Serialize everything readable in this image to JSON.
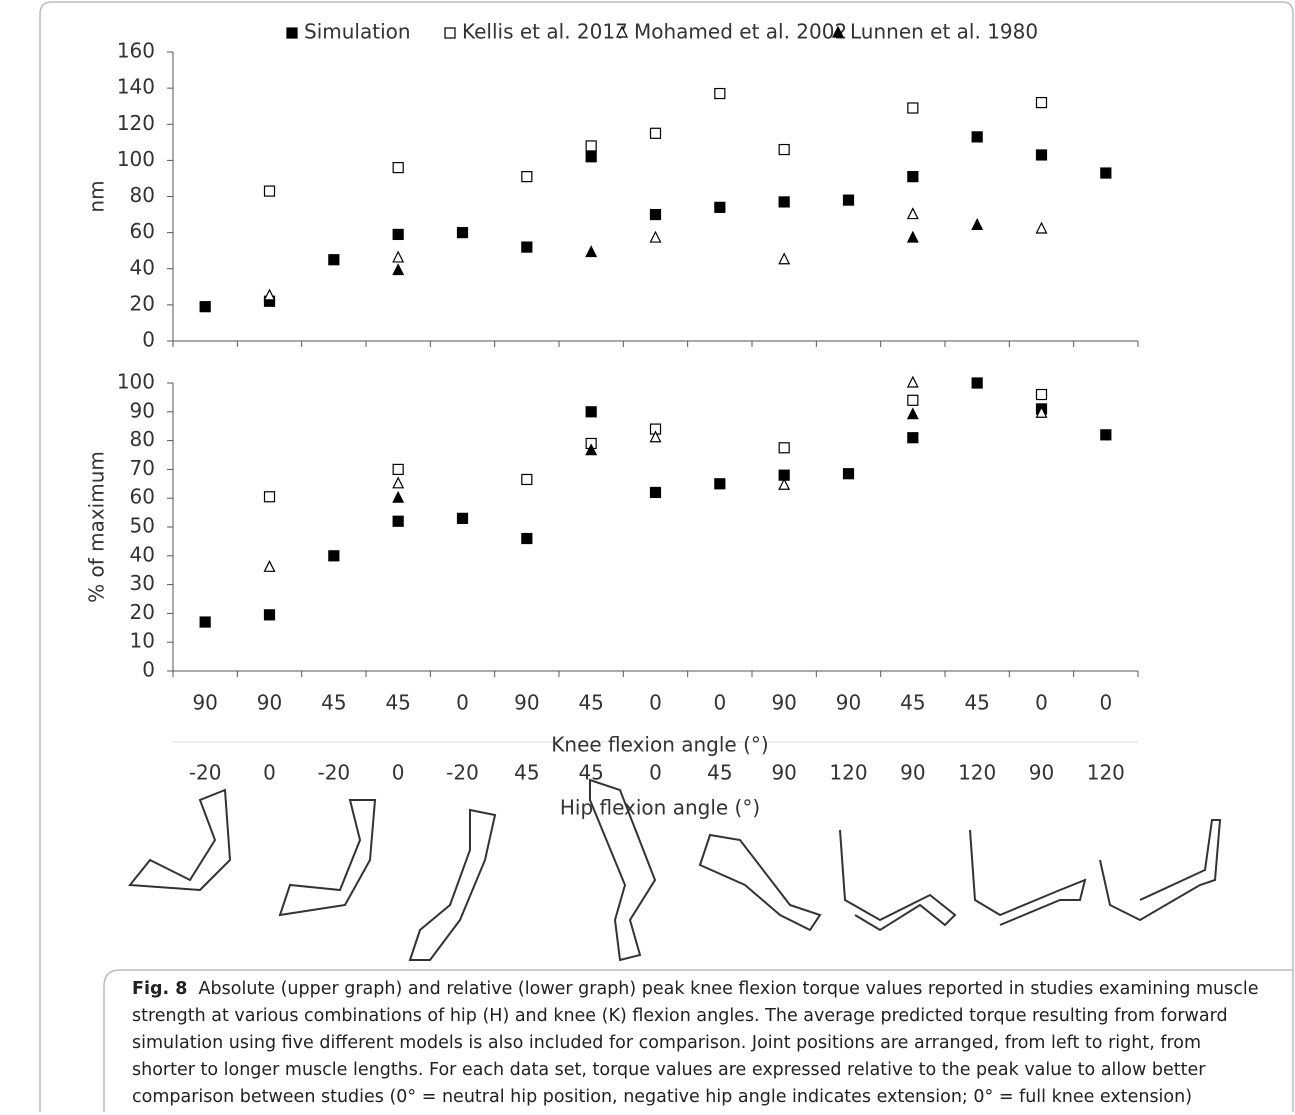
{
  "chart_data": [
    {
      "type": "scatter",
      "ylabel": "nm",
      "ylim": [
        0,
        160
      ],
      "yticks": [
        0,
        20,
        40,
        60,
        80,
        100,
        120,
        140,
        160
      ],
      "series": [
        {
          "name": "Simulation",
          "marker": "filled-square",
          "color": "#000000",
          "values": [
            19,
            22,
            45,
            59,
            60,
            52,
            102,
            70,
            74,
            77,
            78,
            91,
            113,
            103,
            93
          ]
        },
        {
          "name": "Kellis et al. 2017",
          "marker": "open-square",
          "color": "#000000",
          "values": [
            null,
            83,
            null,
            96,
            null,
            91,
            108,
            115,
            137,
            106,
            null,
            129,
            null,
            132,
            null
          ]
        },
        {
          "name": "Mohamed et al. 2002",
          "marker": "open-triangle",
          "color": "#000000",
          "values": [
            null,
            25,
            null,
            46,
            null,
            null,
            null,
            57,
            null,
            45,
            null,
            70,
            null,
            62,
            null
          ]
        },
        {
          "name": "Lunnen et al. 1980",
          "marker": "filled-triangle",
          "color": "#000000",
          "values": [
            null,
            null,
            null,
            39,
            null,
            null,
            49,
            null,
            null,
            null,
            null,
            57,
            64,
            null,
            null
          ]
        }
      ]
    },
    {
      "type": "scatter",
      "ylabel": "% of maximum",
      "ylim": [
        0,
        100
      ],
      "yticks": [
        0,
        10,
        20,
        30,
        40,
        50,
        60,
        70,
        80,
        90,
        100
      ],
      "xlabel": "Knee flexion angle (°)",
      "categories": [
        "90",
        "90",
        "45",
        "45",
        "0",
        "90",
        "45",
        "0",
        "0",
        "90",
        "90",
        "45",
        "45",
        "0",
        "0"
      ],
      "xlabel2": "Hip flexion angle (°)",
      "categories2": [
        "-20",
        "0",
        "-20",
        "0",
        "-20",
        "45",
        "45",
        "0",
        "45",
        "90",
        "120",
        "90",
        "120",
        "90",
        "120"
      ],
      "series": [
        {
          "marker": "filled-square",
          "color": "#000000",
          "values": [
            17,
            19.5,
            40,
            52,
            53,
            46,
            90,
            62,
            65,
            68,
            68.5,
            81,
            100,
            91,
            82
          ]
        },
        {
          "marker": "open-square",
          "color": "#000000",
          "values": [
            null,
            60.5,
            null,
            70,
            null,
            66.5,
            79,
            84,
            null,
            77.5,
            null,
            94,
            null,
            96,
            null
          ]
        },
        {
          "marker": "open-triangle",
          "color": "#000000",
          "values": [
            null,
            36,
            null,
            65,
            null,
            null,
            null,
            81,
            null,
            64.5,
            null,
            100,
            null,
            89.5,
            null
          ]
        },
        {
          "marker": "filled-triangle",
          "color": "#000000",
          "values": [
            null,
            null,
            null,
            60,
            null,
            null,
            76.5,
            null,
            null,
            null,
            null,
            89,
            null,
            null,
            null
          ]
        }
      ]
    }
  ],
  "caption": {
    "label": "Fig. 8",
    "text": "Absolute (upper graph) and relative (lower graph) peak knee flexion torque values reported in studies examining muscle strength at various combinations of hip (H) and knee (K) flexion angles. The average predicted torque resulting from forward simulation using five different models is also included for comparison. Joint positions are arranged, from left to right, from shorter to longer muscle lengths. For each data set, torque values are expressed relative to the peak value to allow better comparison between studies (0° = neutral hip position, negative hip angle indicates extension; 0° = full knee extension)"
  }
}
